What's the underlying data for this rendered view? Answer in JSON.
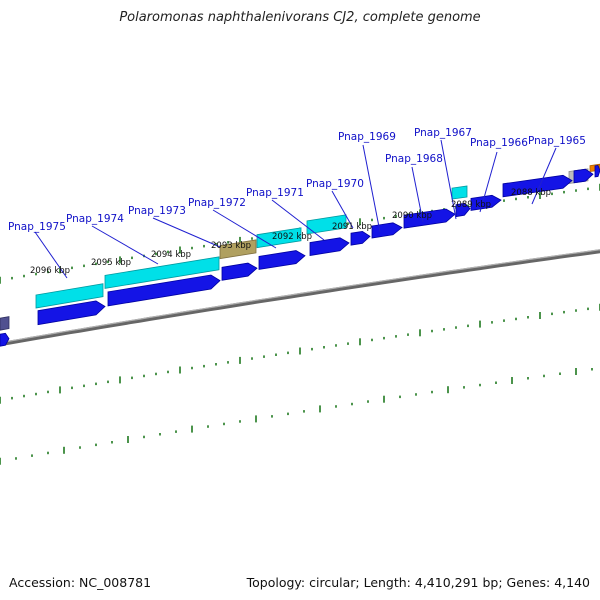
{
  "title": "Polaromonas naphthalenivorans CJ2, complete genome",
  "footer": {
    "accession": "Accession: NC_008781",
    "summary": "Topology: circular; Length: 4,410,291 bp; Genes: 4,140"
  },
  "kbp_labels": [
    "2096 kbp",
    "2095 kbp",
    "2094 kbp",
    "2093 kbp",
    "2092 kbp",
    "2091 kbp",
    "2090 kbp",
    "2089 kbp",
    "2088 kbp"
  ],
  "gene_labels": [
    "Pnap_1975",
    "Pnap_1974",
    "Pnap_1973",
    "Pnap_1972",
    "Pnap_1971",
    "Pnap_1970",
    "Pnap_1969",
    "Pnap_1968",
    "Pnap_1967",
    "Pnap_1966",
    "Pnap_1965"
  ],
  "colors": {
    "cds": "#1414e6",
    "cds_light": "#3c3cff",
    "rna": "#00e0e8",
    "olive": "#b0a060",
    "grey": "#bdbdbd",
    "orange": "#f08000",
    "slate": "#505090",
    "tick": "#1f7a1f",
    "backbone": "#808080",
    "label": "#1010c8"
  }
}
